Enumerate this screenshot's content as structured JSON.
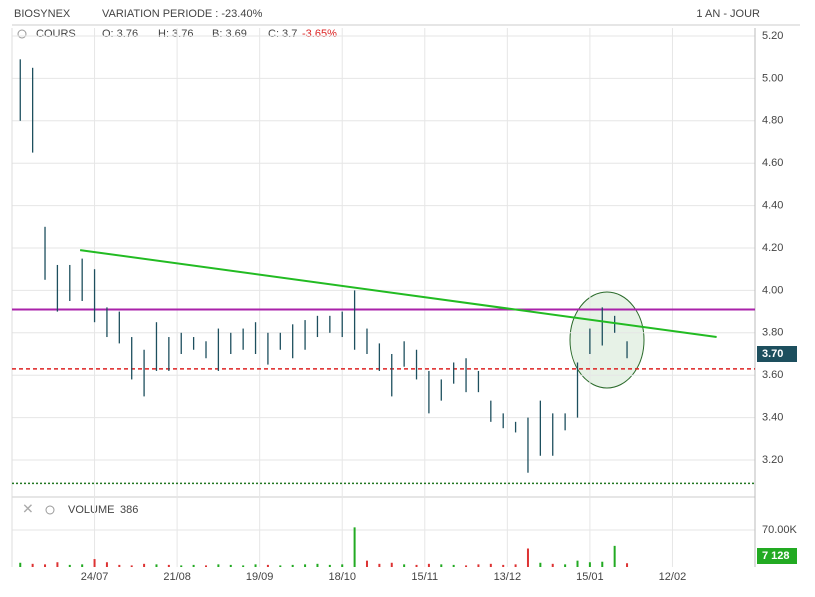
{
  "chart_data": {
    "type": "ohlc",
    "title": "BIOSYNEX",
    "subtitle": "VARIATION PERIODE : -23.40%",
    "period": "1 AN - JOUR",
    "legend": {
      "series": "COURS",
      "open": "O: 3.76",
      "high": "H: 3.76",
      "low": "B: 3.69",
      "close": "C: 3.7",
      "change": "-3.65%"
    },
    "color": "#1d4f5e",
    "x": [
      2,
      5,
      8,
      11,
      14,
      17,
      20,
      23,
      26,
      29,
      32,
      35,
      38,
      41,
      44,
      47,
      50,
      53,
      56,
      59,
      62,
      65,
      68,
      71,
      74,
      77,
      80,
      83,
      86,
      89,
      92,
      95,
      98,
      101,
      104,
      107,
      110,
      113,
      116,
      119,
      122,
      125,
      128,
      131,
      134,
      137,
      140,
      143,
      146,
      149
    ],
    "high": [
      5.09,
      5.05,
      4.3,
      4.12,
      4.12,
      4.15,
      4.1,
      3.92,
      3.9,
      3.78,
      3.72,
      3.85,
      3.78,
      3.8,
      3.78,
      3.76,
      3.82,
      3.8,
      3.82,
      3.85,
      3.8,
      3.8,
      3.84,
      3.86,
      3.88,
      3.88,
      3.9,
      4.0,
      3.82,
      3.75,
      3.7,
      3.76,
      3.72,
      3.62,
      3.58,
      3.66,
      3.68,
      3.62,
      3.48,
      3.42,
      3.38,
      3.4,
      3.48,
      3.42,
      3.42,
      3.66,
      3.82,
      3.92,
      3.88,
      3.76
    ],
    "low": [
      4.8,
      4.65,
      4.05,
      3.9,
      3.95,
      3.95,
      3.85,
      3.78,
      3.75,
      3.58,
      3.5,
      3.62,
      3.62,
      3.7,
      3.72,
      3.68,
      3.62,
      3.7,
      3.72,
      3.7,
      3.65,
      3.72,
      3.68,
      3.72,
      3.78,
      3.8,
      3.78,
      3.72,
      3.7,
      3.62,
      3.5,
      3.64,
      3.58,
      3.42,
      3.48,
      3.56,
      3.52,
      3.52,
      3.38,
      3.35,
      3.33,
      3.14,
      3.22,
      3.22,
      3.34,
      3.4,
      3.7,
      3.74,
      3.8,
      3.68
    ],
    "xlim": [
      0,
      180
    ],
    "xticks": [
      {
        "value": 20,
        "label": "24/07"
      },
      {
        "value": 40,
        "label": "21/08"
      },
      {
        "value": 60,
        "label": "19/09"
      },
      {
        "value": 80,
        "label": "18/10"
      },
      {
        "value": 100,
        "label": "15/11"
      },
      {
        "value": 120,
        "label": "13/12"
      },
      {
        "value": 140,
        "label": "15/01"
      },
      {
        "value": 160,
        "label": "12/02"
      }
    ],
    "ylim": [
      3.1,
      5.25
    ],
    "yticks": [
      {
        "value": 3.2,
        "label": "3.20"
      },
      {
        "value": 3.4,
        "label": "3.40"
      },
      {
        "value": 3.6,
        "label": "3.60"
      },
      {
        "value": 3.8,
        "label": "3.80"
      },
      {
        "value": 4.0,
        "label": "4.00"
      },
      {
        "value": 4.2,
        "label": "4.20"
      },
      {
        "value": 4.4,
        "label": "4.40"
      },
      {
        "value": 4.6,
        "label": "4.60"
      },
      {
        "value": 4.8,
        "label": "4.80"
      },
      {
        "value": 5.0,
        "label": "5.00"
      },
      {
        "value": 5.2,
        "label": "5.20"
      }
    ],
    "grid": true,
    "last": {
      "value": 3.7,
      "label": "3.70"
    },
    "trendline": {
      "color": "#22bb22",
      "x": [
        16.5,
        170.7
      ],
      "y": [
        4.19,
        3.78
      ]
    },
    "hlines": [
      {
        "value": 3.91,
        "color": "#aa22aa",
        "style": "solid"
      },
      {
        "value": 3.63,
        "color": "#dd2222",
        "style": "dashed"
      },
      {
        "value": 3.09,
        "color": "#227722",
        "style": "dotted"
      }
    ],
    "volume": {
      "name": "VOLUME",
      "count": "386",
      "values": [
        8000,
        6000,
        5000,
        9000,
        4000,
        5000,
        15000,
        9000,
        4000,
        3000,
        6000,
        5000,
        4000,
        3000,
        4000,
        3000,
        5000,
        4000,
        3000,
        5000,
        4000,
        3000,
        4000,
        5000,
        6000,
        4000,
        5000,
        75000,
        12000,
        6000,
        8000,
        5000,
        4000,
        6000,
        5000,
        4000,
        3000,
        5000,
        6000,
        4000,
        5000,
        35000,
        8000,
        6000,
        5000,
        12000,
        9000,
        10000,
        40000,
        7128
      ],
      "last_label": "7 128",
      "ylim": [
        0,
        70000
      ],
      "yticks": [
        {
          "value": 70000,
          "label": "70.00K"
        }
      ],
      "up_color": "#22aa22",
      "down_color": "#dd3333"
    }
  }
}
